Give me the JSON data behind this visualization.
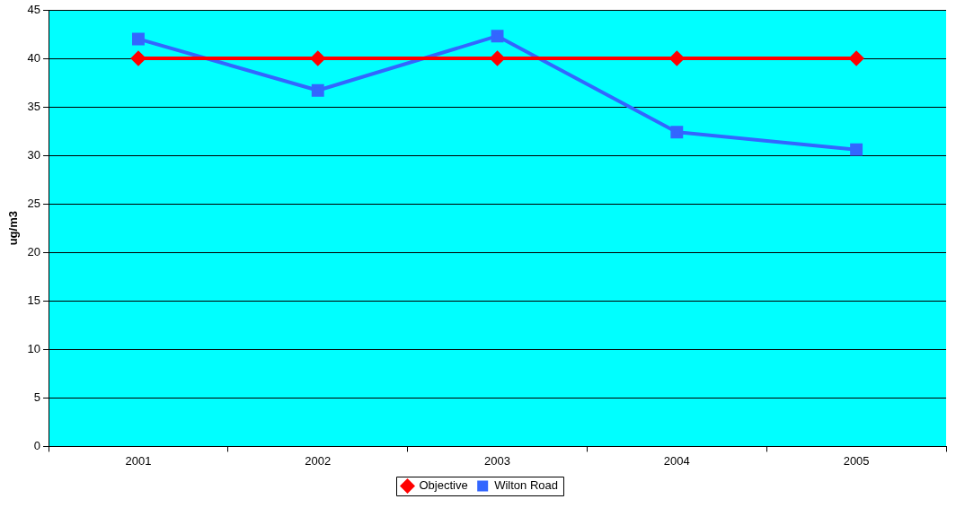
{
  "chart_data": {
    "type": "line",
    "ylabel": "ug/m3",
    "categories": [
      "2001",
      "2002",
      "2003",
      "2004",
      "2005"
    ],
    "series": [
      {
        "name": "Objective",
        "color": "#ff0000",
        "marker": "diamond",
        "values": [
          40,
          40,
          40,
          40,
          40
        ]
      },
      {
        "name": "Wilton Road",
        "color": "#3366ff",
        "marker": "square",
        "values": [
          42,
          36.7,
          42.3,
          32.4,
          30.6
        ]
      }
    ],
    "ylim": [
      0,
      45
    ],
    "yticks": [
      0,
      5,
      10,
      15,
      20,
      25,
      30,
      35,
      40,
      45
    ],
    "grid": "y",
    "legend": "bottom"
  }
}
